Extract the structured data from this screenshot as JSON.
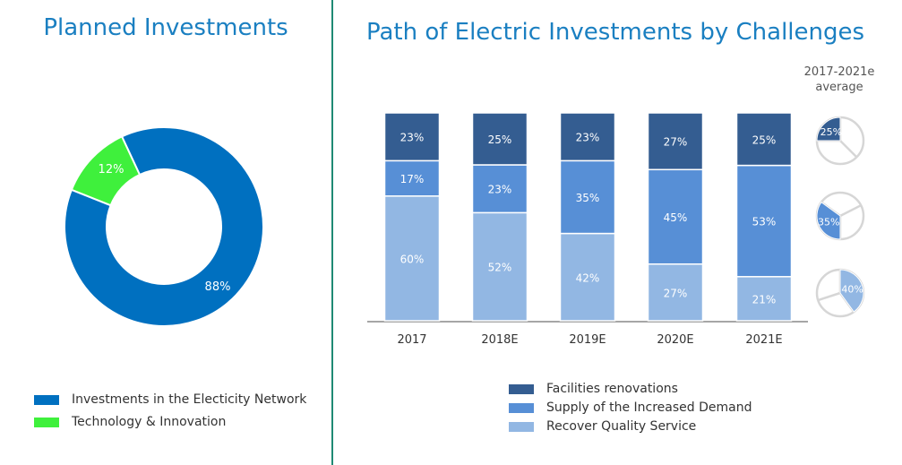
{
  "left_title": "Planned Investments",
  "right_title": "Path of Electric Investments by Challenges",
  "avg_label_line1": "2017-2021e",
  "avg_label_line2": "average",
  "colors": {
    "network": "#0070c0",
    "tech": "#3ff03c",
    "renovations": "#345d91",
    "demand": "#578fd6",
    "quality": "#92b7e3",
    "divider": "#1f8a74",
    "title": "#1a7fc1"
  },
  "legend_left": [
    {
      "label": "Investments in the Electicity Network",
      "color": "#0070c0"
    },
    {
      "label": "Technology & Innovation",
      "color": "#3ff03c"
    }
  ],
  "legend_right": [
    {
      "label": "Facilities renovations",
      "color": "#345d91"
    },
    {
      "label": "Supply of the Increased Demand",
      "color": "#578fd6"
    },
    {
      "label": "Recover Quality Service",
      "color": "#92b7e3"
    }
  ],
  "chart_data": [
    {
      "type": "pie",
      "title": "Planned Investments",
      "donut": true,
      "slices": [
        {
          "name": "Investments in the Electicity Network",
          "value": 88,
          "label": "88%"
        },
        {
          "name": "Technology & Innovation",
          "value": 12,
          "label": "12%"
        }
      ]
    },
    {
      "type": "bar",
      "stacked": true,
      "title": "Path of Electric Investments by Challenges",
      "categories": [
        "2017",
        "2018E",
        "2019E",
        "2020E",
        "2021E"
      ],
      "series": [
        {
          "name": "Recover Quality Service",
          "values": [
            60,
            52,
            42,
            27,
            21
          ],
          "labels": [
            "60%",
            "52%",
            "42%",
            "27%",
            "21%"
          ]
        },
        {
          "name": "Supply of the Increased Demand",
          "values": [
            17,
            23,
            35,
            45,
            53
          ],
          "labels": [
            "17%",
            "23%",
            "35%",
            "45%",
            "53%"
          ]
        },
        {
          "name": "Facilities renovations",
          "values": [
            23,
            25,
            23,
            27,
            25
          ],
          "labels": [
            "23%",
            "25%",
            "23%",
            "27%",
            "25%"
          ]
        }
      ],
      "ylim": [
        0,
        100
      ],
      "xlabel": "",
      "ylabel": ""
    },
    {
      "type": "pie",
      "title": "2017-2021e average",
      "small_multiples": [
        {
          "name": "Facilities renovations",
          "value": 25,
          "label": "25%"
        },
        {
          "name": "Supply of the Increased Demand",
          "value": 35,
          "label": "35%"
        },
        {
          "name": "Recover Quality Service",
          "value": 40,
          "label": "40%"
        }
      ]
    }
  ]
}
